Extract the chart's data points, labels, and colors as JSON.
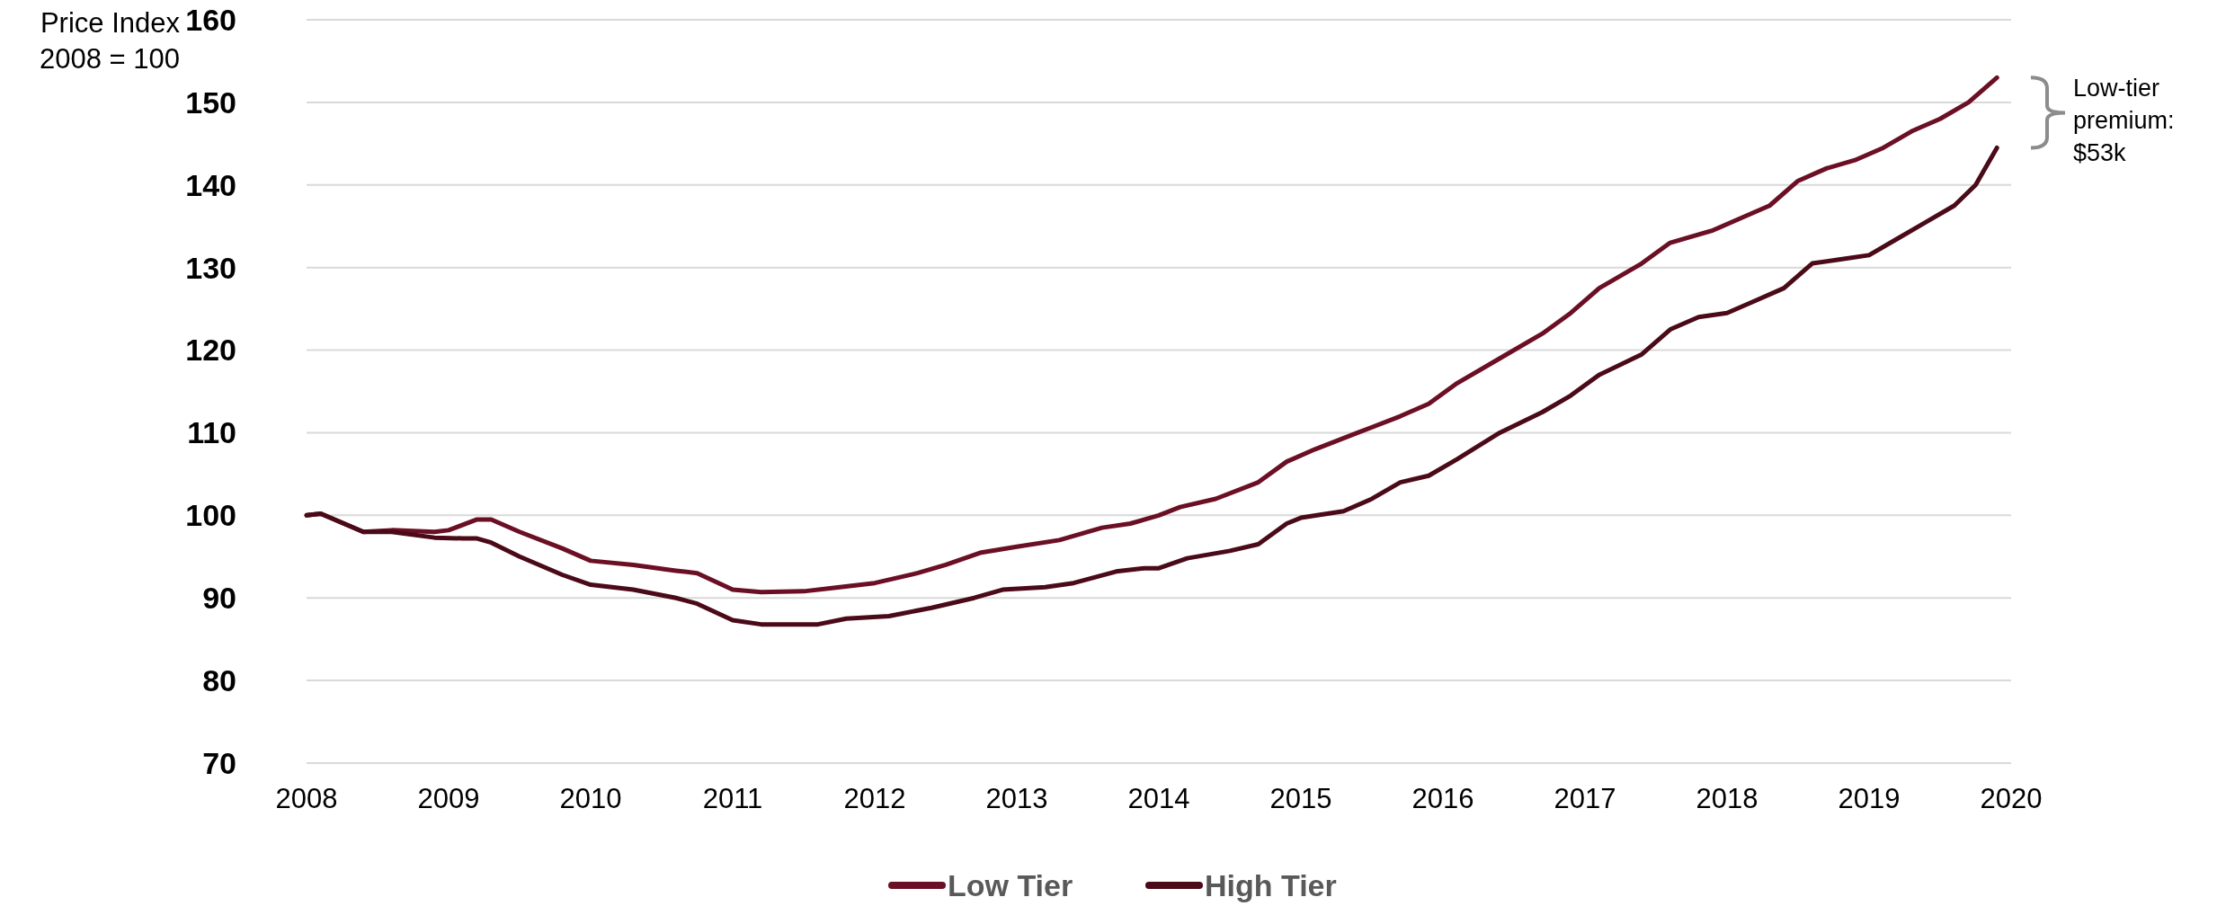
{
  "chart_data": {
    "type": "line",
    "ylabel": "Price Index\n2008 = 100",
    "annotations": [
      "Low-tier\npremium:\n$53k"
    ],
    "xlim": [
      2008,
      2020
    ],
    "xticks": [
      2008,
      2009,
      2010,
      2011,
      2012,
      2013,
      2014,
      2015,
      2016,
      2017,
      2018,
      2019,
      2020
    ],
    "ylim": [
      70,
      160
    ],
    "yticks": [
      70,
      80,
      90,
      100,
      110,
      120,
      130,
      140,
      150,
      160
    ],
    "grid": "y",
    "legend": "bottom",
    "marker": "none",
    "line_style": "solid",
    "series": [
      {
        "name": "Low Tier",
        "color": "#6b0f24",
        "x": [
          2008.0,
          2008.1,
          2008.4,
          2008.6,
          2008.9,
          2009.0,
          2009.2,
          2009.3,
          2009.5,
          2009.8,
          2010.0,
          2010.3,
          2010.6,
          2010.75,
          2011.0,
          2011.2,
          2011.5,
          2011.7,
          2012.0,
          2012.3,
          2012.5,
          2012.75,
          2013.0,
          2013.3,
          2013.6,
          2013.8,
          2014.0,
          2014.15,
          2014.4,
          2014.7,
          2014.9,
          2015.1,
          2015.4,
          2015.7,
          2015.9,
          2016.1,
          2016.4,
          2016.7,
          2016.9,
          2017.1,
          2017.4,
          2017.6,
          2017.9,
          2018.1,
          2018.3,
          2018.5,
          2018.7,
          2018.9,
          2019.1,
          2019.3,
          2019.5,
          2019.7,
          2019.9
        ],
        "values": [
          100,
          100.2,
          98,
          98.2,
          98,
          98.2,
          99.5,
          99.5,
          98,
          96,
          94.5,
          94,
          93.3,
          93,
          91,
          90.7,
          90.8,
          91.2,
          91.8,
          93,
          94,
          95.5,
          96.2,
          97,
          98.5,
          99,
          100,
          101,
          102,
          104,
          106.5,
          108,
          110,
          112,
          113.5,
          116,
          119,
          122,
          124.5,
          127.5,
          130.5,
          133,
          134.5,
          136,
          137.5,
          140.5,
          142,
          143,
          144.5,
          146.5,
          148,
          150,
          153
        ]
      },
      {
        "name": "High Tier",
        "color": "#4a0a18",
        "x": [
          2008.0,
          2008.1,
          2008.4,
          2008.6,
          2008.9,
          2009.1,
          2009.2,
          2009.3,
          2009.5,
          2009.8,
          2010.0,
          2010.3,
          2010.6,
          2010.75,
          2011.0,
          2011.2,
          2011.6,
          2011.8,
          2012.1,
          2012.4,
          2012.7,
          2012.9,
          2013.2,
          2013.4,
          2013.7,
          2013.9,
          2014.0,
          2014.2,
          2014.5,
          2014.7,
          2014.9,
          2015.0,
          2015.3,
          2015.5,
          2015.7,
          2015.9,
          2016.1,
          2016.4,
          2016.7,
          2016.9,
          2017.1,
          2017.4,
          2017.6,
          2017.8,
          2018.0,
          2018.2,
          2018.4,
          2018.6,
          2018.8,
          2019.0,
          2019.2,
          2019.4,
          2019.6,
          2019.75,
          2019.9
        ],
        "values": [
          100,
          100.2,
          98,
          98,
          97.3,
          97.2,
          97.2,
          96.7,
          95,
          92.8,
          91.6,
          91,
          90,
          89.3,
          87.3,
          86.8,
          86.8,
          87.5,
          87.8,
          88.8,
          90,
          91,
          91.3,
          91.8,
          93.2,
          93.6,
          93.6,
          94.8,
          95.7,
          96.5,
          99,
          99.7,
          100.5,
          102,
          104,
          104.8,
          106.8,
          110,
          112.5,
          114.5,
          117,
          119.5,
          122.5,
          124,
          124.5,
          126,
          127.5,
          130.5,
          131,
          131.5,
          133.5,
          135.5,
          137.5,
          140,
          144.5
        ]
      }
    ]
  }
}
